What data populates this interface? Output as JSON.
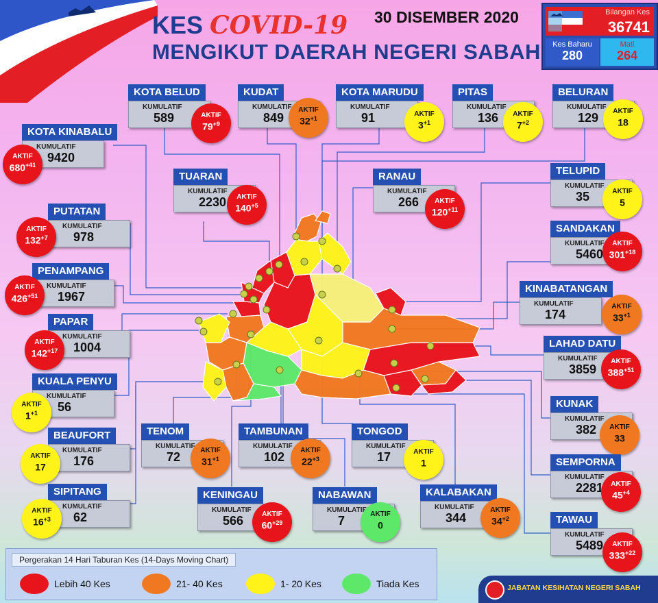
{
  "header": {
    "title_prefix": "KES",
    "title_highlight": "COVID-19",
    "subtitle": "MENGIKUT DAERAH NEGERI SABAH",
    "date": "30 DISEMBER 2020"
  },
  "summary": {
    "total_label": "Bilangan Kes",
    "total_value": "36741",
    "new_label": "Kes Baharu",
    "new_value": "280",
    "death_label": "Mati",
    "death_value": "264"
  },
  "labels": {
    "cumulative": "KUMULATIF",
    "active": "AKTIF"
  },
  "colors": {
    "red": "#e8141c",
    "orange": "#f07820",
    "yellow": "#fff31a",
    "green": "#5ee86a",
    "header_blue": "#2450b4"
  },
  "districts": [
    {
      "name": "KOTA BELUD",
      "cumulative": "589",
      "active": "79",
      "delta": "+9",
      "level": "red"
    },
    {
      "name": "KUDAT",
      "cumulative": "849",
      "active": "32",
      "delta": "+1",
      "level": "orange"
    },
    {
      "name": "KOTA MARUDU",
      "cumulative": "91",
      "active": "3",
      "delta": "+1",
      "level": "yellow"
    },
    {
      "name": "PITAS",
      "cumulative": "136",
      "active": "7",
      "delta": "+2",
      "level": "yellow"
    },
    {
      "name": "BELURAN",
      "cumulative": "129",
      "active": "18",
      "delta": "",
      "level": "yellow"
    },
    {
      "name": "KOTA KINABALU",
      "cumulative": "9420",
      "active": "680",
      "delta": "+41",
      "level": "red"
    },
    {
      "name": "TUARAN",
      "cumulative": "2230",
      "active": "140",
      "delta": "+5",
      "level": "red"
    },
    {
      "name": "RANAU",
      "cumulative": "266",
      "active": "120",
      "delta": "+11",
      "level": "red"
    },
    {
      "name": "TELUPID",
      "cumulative": "35",
      "active": "5",
      "delta": "",
      "level": "yellow"
    },
    {
      "name": "PUTATAN",
      "cumulative": "978",
      "active": "132",
      "delta": "+7",
      "level": "red"
    },
    {
      "name": "SANDAKAN",
      "cumulative": "5460",
      "active": "301",
      "delta": "+18",
      "level": "red"
    },
    {
      "name": "PENAMPANG",
      "cumulative": "1967",
      "active": "426",
      "delta": "+51",
      "level": "red"
    },
    {
      "name": "KINABATANGAN",
      "cumulative": "174",
      "active": "33",
      "delta": "+1",
      "level": "orange"
    },
    {
      "name": "PAPAR",
      "cumulative": "1004",
      "active": "142",
      "delta": "+17",
      "level": "red"
    },
    {
      "name": "LAHAD DATU",
      "cumulative": "3859",
      "active": "388",
      "delta": "+51",
      "level": "red"
    },
    {
      "name": "KUALA PENYU",
      "cumulative": "56",
      "active": "1",
      "delta": "+1",
      "level": "yellow"
    },
    {
      "name": "KUNAK",
      "cumulative": "382",
      "active": "33",
      "delta": "",
      "level": "orange"
    },
    {
      "name": "BEAUFORT",
      "cumulative": "176",
      "active": "17",
      "delta": "",
      "level": "yellow"
    },
    {
      "name": "TENOM",
      "cumulative": "72",
      "active": "31",
      "delta": "+1",
      "level": "orange"
    },
    {
      "name": "TAMBUNAN",
      "cumulative": "102",
      "active": "22",
      "delta": "+3",
      "level": "orange"
    },
    {
      "name": "TONGOD",
      "cumulative": "17",
      "active": "1",
      "delta": "",
      "level": "yellow"
    },
    {
      "name": "SEMPORNA",
      "cumulative": "2281",
      "active": "45",
      "delta": "+4",
      "level": "red"
    },
    {
      "name": "SIPITANG",
      "cumulative": "62",
      "active": "16",
      "delta": "+3",
      "level": "yellow"
    },
    {
      "name": "KENINGAU",
      "cumulative": "566",
      "active": "60",
      "delta": "+29",
      "level": "red"
    },
    {
      "name": "NABAWAN",
      "cumulative": "7",
      "active": "0",
      "delta": "",
      "level": "green"
    },
    {
      "name": "KALABAKAN",
      "cumulative": "344",
      "active": "34",
      "delta": "+2",
      "level": "orange"
    },
    {
      "name": "TAWAU",
      "cumulative": "5489",
      "active": "333",
      "delta": "+22",
      "level": "red"
    }
  ],
  "legend": {
    "title": "Pergerakan 14 Hari Taburan Kes (14-Days Moving Chart)",
    "items": [
      {
        "label": "Lebih 40 Kes",
        "level": "red"
      },
      {
        "label": "21- 40 Kes",
        "level": "orange"
      },
      {
        "label": "1- 20 Kes",
        "level": "yellow"
      },
      {
        "label": "Tiada Kes",
        "level": "green"
      }
    ]
  },
  "footer": {
    "agency": "JABATAN KESIHATAN NEGERI SABAH"
  }
}
